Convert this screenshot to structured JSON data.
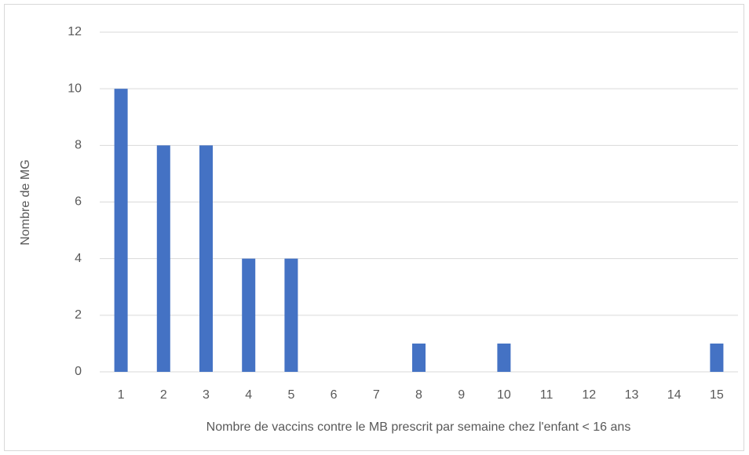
{
  "chart_data": {
    "type": "bar",
    "categories": [
      "1",
      "2",
      "3",
      "4",
      "5",
      "6",
      "7",
      "8",
      "9",
      "10",
      "11",
      "12",
      "13",
      "14",
      "15"
    ],
    "values": [
      10,
      8,
      8,
      4,
      4,
      0,
      0,
      1,
      0,
      1,
      0,
      0,
      0,
      0,
      1
    ],
    "color": "#4472c4",
    "xlabel": "Nombre de vaccins contre le MB prescrit par semaine chez l'enfant < 16 ans",
    "ylabel": "Nombre de MG",
    "ylim": [
      0,
      12
    ],
    "yticks": [
      0,
      2,
      4,
      6,
      8,
      10,
      12
    ],
    "grid": true
  }
}
